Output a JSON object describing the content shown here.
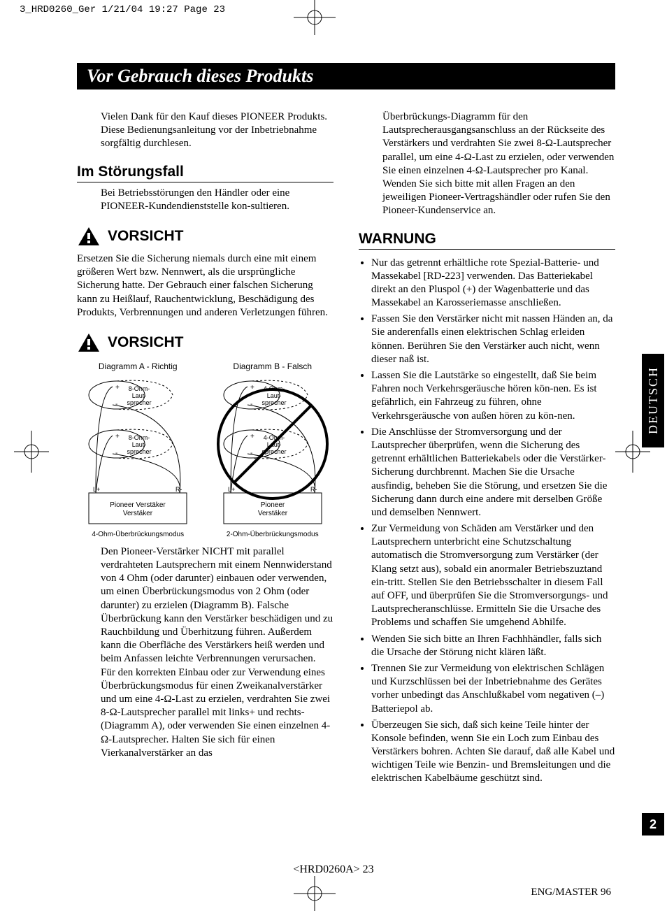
{
  "printHeader": "3_HRD0260_Ger  1/21/04 19:27  Page 23",
  "titleBar": "Vor Gebrauch dieses Produkts",
  "left": {
    "intro": "Vielen Dank für den Kauf dieses PIONEER Produkts. Diese Bedienungsanleitung vor der Inbetriebnahme sorgfältig durchlesen.",
    "h_stoerung": "Im Störungsfall",
    "p_stoerung": "Bei Betriebsstörungen den Händler oder eine PIONEER-Kundendienststelle kon-sultieren.",
    "vorsicht": "VORSICHT",
    "p_vorsicht1": "Ersetzen Sie die Sicherung niemals durch eine mit einem größeren Wert bzw. Nennwert, als die ursprüngliche Sicherung hatte. Der Gebrauch einer falschen Sicherung kann zu Heißlauf, Rauchentwicklung, Beschädigung des Produkts, Verbrennungen und anderen Verletzungen führen.",
    "diagA_title": "Diagramm A - Richtig",
    "diagB_title": "Diagramm B - Falsch",
    "diagA_caption": "4-Ohm-Überbrückungsmodus",
    "diagB_caption": "2-Ohm-Überbrückungsmodus",
    "spk8": "8-Ohm-\nLaut-\nsprecher",
    "spk4": "4-Ohm-\nLaut-\nsprecher",
    "amp": "Pioneer\nVerstäker",
    "lplus": "L+",
    "rminus": "R-",
    "p_body1": "Den Pioneer-Verstärker NICHT mit parallel verdrahteten Lautsprechern mit einem Nennwiderstand von 4 Ohm (oder darunter) einbauen oder verwenden, um einen Überbrückungsmodus von 2 Ohm (oder darunter) zu erzielen (Diagramm B). Falsche Überbrückung kann den Verstärker beschädigen und zu Rauchbildung und Überhitzung führen. Außerdem kann die Oberfläche des Verstärkers heiß werden und beim Anfassen leichte Verbrennungen verursachen.",
    "p_body2": "Für den korrekten Einbau oder zur Verwendung eines Überbrückungsmodus für einen Zweikanalverstärker und um eine 4-Ω-Last zu erzielen, verdrahten Sie zwei 8-Ω-Lautsprecher parallel mit links+ und rechts- (Diagramm A), oder verwenden Sie einen einzelnen 4-Ω-Lautsprecher. Halten Sie sich für einen Vierkanalverstärker an das"
  },
  "right": {
    "p_cont": "Überbrückungs-Diagramm für den Lautsprecherausgangsanschluss an der Rückseite des Verstärkers und verdrahten Sie zwei 8-Ω-Lautsprecher parallel, um eine 4-Ω-Last zu erzielen, oder verwenden Sie einen einzelnen 4-Ω-Lautsprecher pro Kanal. Wenden Sie sich bitte mit allen Fragen an den jeweiligen Pioneer-Vertragshändler oder rufen Sie den Pioneer-Kundenservice an.",
    "h_warnung": "WARNUNG",
    "bullets": [
      "Nur das getrennt erhältliche rote Spezial-Batterie- und Massekabel [RD-223] verwenden. Das Batteriekabel direkt an den Pluspol (+) der Wagenbatterie und das Massekabel an Karosseriemasse anschließen.",
      "Fassen Sie den Verstärker nicht mit nassen Händen an, da Sie anderenfalls einen elektrischen Schlag erleiden können. Berühren Sie den Verstärker auch nicht, wenn dieser naß ist.",
      "Lassen Sie die Lautstärke so eingestellt, daß Sie beim Fahren noch Verkehrsgeräusche hören kön-nen. Es ist gefährlich, ein Fahrzeug zu führen, ohne Verkehrsgeräusche von außen hören zu kön-nen.",
      "Die Anschlüsse der Stromversorgung und der Lautsprecher überprüfen, wenn die Sicherung des getrennt erhältlichen Batteriekabels oder die Verstärker-Sicherung durchbrennt. Machen Sie die Ursache ausfindig, beheben Sie die Störung, und ersetzen Sie die Sicherung dann durch eine andere mit derselben Größe und demselben Nennwert.",
      "Zur Vermeidung von Schäden am Verstärker und den Lautsprechern unterbricht eine Schutzschaltung automatisch die Stromversorgung zum Verstärker (der Klang setzt aus), sobald ein anormaler Betriebszuztand ein-tritt. Stellen Sie den Betriebsschalter in diesem Fall auf OFF, und überprüfen Sie die Stromversorgungs- und Lautsprecheranschlüsse. Ermitteln Sie die Ursache des Problems und schaffen Sie umgehend Abhilfe.",
      "Wenden Sie sich bitte an Ihren Fachhhändler, falls sich die Ursache der Störung nicht klären läßt.",
      "Trennen Sie zur Vermeidung von elektrischen Schlägen und Kurzschlüssen bei der Inbetriebnahme des Gerätes vorher unbedingt das Anschlußkabel vom negativen (–) Batteriepol ab.",
      "Überzeugen Sie sich, daß sich keine Teile hinter der Konsole befinden, wenn Sie ein Loch zum Einbau des Verstärkers bohren. Achten Sie darauf, daß alle Kabel und wichtigen Teile wie Benzin- und Bremsleitungen und die elektrischen Kabelbäume geschützt sind."
    ]
  },
  "langTab": "DEUTSCH",
  "pageTab": "2",
  "footerCenter": "<HRD0260A> 23",
  "footerRight": "ENG/MASTER 96",
  "colors": {
    "black": "#000000",
    "white": "#ffffff"
  }
}
